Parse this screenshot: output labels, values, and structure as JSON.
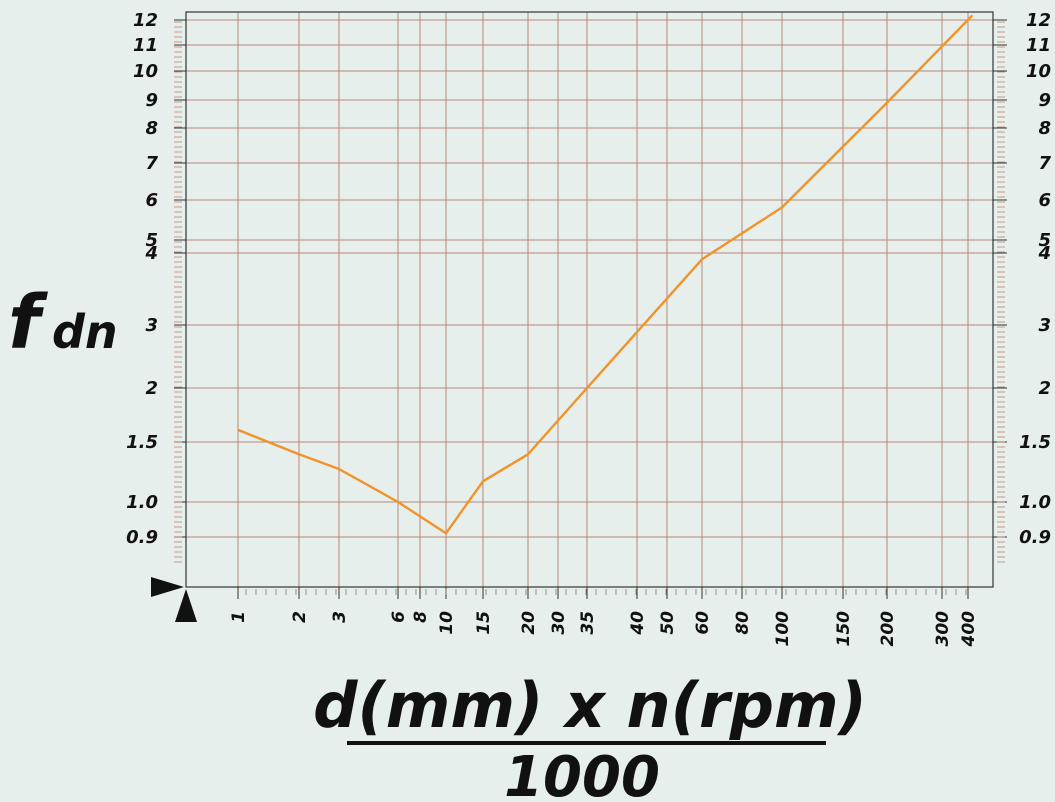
{
  "chart_data": {
    "type": "line",
    "ylabel_main": "f",
    "ylabel_sub": "dn",
    "xlabel_numerator": "d(mm) x n(rpm)",
    "xlabel_denominator": "1000",
    "y_ticks": [
      {
        "value": 12,
        "label": "12"
      },
      {
        "value": 11,
        "label": "11"
      },
      {
        "value": 10,
        "label": "10"
      },
      {
        "value": 9,
        "label": "9"
      },
      {
        "value": 8,
        "label": "8"
      },
      {
        "value": 7,
        "label": "7"
      },
      {
        "value": 6,
        "label": "6"
      },
      {
        "value": 5,
        "label": "5"
      },
      {
        "value": 4,
        "label": "4"
      },
      {
        "value": 3,
        "label": "3"
      },
      {
        "value": 2,
        "label": "2"
      },
      {
        "value": 1.5,
        "label": "1.5"
      },
      {
        "value": 1.0,
        "label": "1.0"
      },
      {
        "value": 0.9,
        "label": "0.9"
      }
    ],
    "x_ticks": [
      {
        "value": 1,
        "label": "1"
      },
      {
        "value": 2,
        "label": "2"
      },
      {
        "value": 3,
        "label": "3"
      },
      {
        "value": 6,
        "label": "6"
      },
      {
        "value": 8,
        "label": "8"
      },
      {
        "value": 10,
        "label": "10"
      },
      {
        "value": 15,
        "label": "15"
      },
      {
        "value": 20,
        "label": "20"
      },
      {
        "value": 30,
        "label": "30"
      },
      {
        "value": 35,
        "label": "35"
      },
      {
        "value": 40,
        "label": "40"
      },
      {
        "value": 50,
        "label": "50"
      },
      {
        "value": 60,
        "label": "60"
      },
      {
        "value": 80,
        "label": "80"
      },
      {
        "value": 100,
        "label": "100"
      },
      {
        "value": 150,
        "label": "150"
      },
      {
        "value": 200,
        "label": "200"
      },
      {
        "value": 300,
        "label": "300"
      },
      {
        "value": 400,
        "label": "400"
      }
    ],
    "series": [
      {
        "color": "#f0932b",
        "points": [
          {
            "x": 1,
            "y": 1.6
          },
          {
            "x": 2,
            "y": 1.38
          },
          {
            "x": 3,
            "y": 1.25
          },
          {
            "x": 6,
            "y": 1.0
          },
          {
            "x": 10,
            "y": 0.91
          },
          {
            "x": 15,
            "y": 1.15
          },
          {
            "x": 20,
            "y": 1.38
          },
          {
            "x": 35,
            "y": 2.0
          },
          {
            "x": 60,
            "y": 3.9
          },
          {
            "x": 100,
            "y": 5.8
          },
          {
            "x": 200,
            "y": 8.9
          },
          {
            "x": 420,
            "y": 12.2
          }
        ]
      }
    ],
    "grid": true,
    "grid_color": "#b98477",
    "axis_color": "#333333"
  }
}
